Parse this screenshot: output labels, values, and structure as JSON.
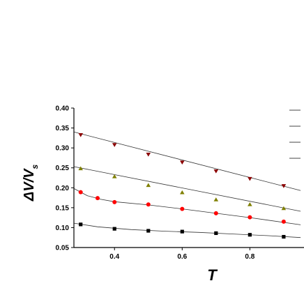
{
  "chart_data": {
    "type": "scatter",
    "xlabel": "T",
    "ylabel": "ΔV/V",
    "ylabel_subscript": "s",
    "xlim": [
      0.28,
      0.96
    ],
    "ylim": [
      0.05,
      0.4
    ],
    "x_ticks": [
      0.4,
      0.6,
      0.8
    ],
    "x_tick_labels": [
      "0.4",
      "0.6",
      "0.8"
    ],
    "y_ticks": [
      0.05,
      0.1,
      0.15,
      0.2,
      0.25,
      0.3,
      0.35,
      0.4
    ],
    "y_tick_labels": [
      "0.05",
      "0.10",
      "0.15",
      "0.20",
      "0.25",
      "0.30",
      "0.35",
      "0.40"
    ],
    "grid": false,
    "legend_placement": "top-right",
    "legend_lines": 4,
    "series": [
      {
        "marker": "down-triangle",
        "color": "#8b0000",
        "x": [
          0.3,
          0.4,
          0.5,
          0.6,
          0.7,
          0.8,
          0.9
        ],
        "y": [
          0.333,
          0.308,
          0.284,
          0.264,
          0.242,
          0.223,
          0.205
        ],
        "fit": [
          [
            0.28,
            0.34
          ],
          [
            0.95,
            0.193
          ]
        ]
      },
      {
        "marker": "up-triangle",
        "color": "#808000",
        "x": [
          0.3,
          0.4,
          0.5,
          0.6,
          0.7,
          0.8,
          0.9
        ],
        "y": [
          0.248,
          0.228,
          0.206,
          0.188,
          0.17,
          0.158,
          0.148
        ],
        "fit": [
          [
            0.28,
            0.253
          ],
          [
            0.95,
            0.141
          ]
        ]
      },
      {
        "marker": "circle",
        "color": "#ff0000",
        "x": [
          0.3,
          0.35,
          0.4,
          0.5,
          0.6,
          0.7,
          0.8,
          0.9
        ],
        "y": [
          0.189,
          0.174,
          0.164,
          0.158,
          0.147,
          0.136,
          0.126,
          0.115
        ],
        "fit": [
          [
            0.28,
            0.198
          ],
          [
            0.32,
            0.18
          ],
          [
            0.36,
            0.171
          ],
          [
            0.4,
            0.165
          ],
          [
            0.5,
            0.157
          ],
          [
            0.6,
            0.147
          ],
          [
            0.7,
            0.136
          ],
          [
            0.8,
            0.125
          ],
          [
            0.95,
            0.107
          ]
        ]
      },
      {
        "marker": "square",
        "color": "#000000",
        "x": [
          0.3,
          0.4,
          0.5,
          0.6,
          0.7,
          0.8,
          0.9
        ],
        "y": [
          0.108,
          0.097,
          0.092,
          0.09,
          0.086,
          0.082,
          0.077
        ],
        "fit": [
          [
            0.28,
            0.111
          ],
          [
            0.35,
            0.102
          ],
          [
            0.45,
            0.095
          ],
          [
            0.55,
            0.091
          ],
          [
            0.65,
            0.088
          ],
          [
            0.75,
            0.084
          ],
          [
            0.85,
            0.08
          ],
          [
            0.95,
            0.075
          ]
        ]
      }
    ]
  }
}
